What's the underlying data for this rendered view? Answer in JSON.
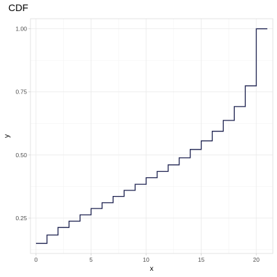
{
  "chart_data": {
    "type": "line",
    "subtype": "step",
    "title": "CDF",
    "xlabel": "x",
    "ylabel": "y",
    "xlim": [
      -0.5,
      21.5
    ],
    "ylim": [
      0.11,
      1.04
    ],
    "x_ticks": [
      0,
      5,
      10,
      15,
      20
    ],
    "x_tick_labels": [
      "0",
      "5",
      "10",
      "15",
      "20"
    ],
    "y_ticks": [
      0.25,
      0.5,
      0.75,
      1.0
    ],
    "y_tick_labels": [
      "0.25",
      "0.50",
      "0.75",
      "1.00"
    ],
    "grid": true,
    "legend": "none",
    "line_color": "#1a1f4d",
    "series": [
      {
        "x": [
          0,
          1,
          2,
          3,
          4,
          5,
          6,
          7,
          8,
          9,
          10,
          11,
          12,
          13,
          14,
          15,
          16,
          17,
          18,
          19,
          20,
          21
        ],
        "y": [
          0.15,
          0.183,
          0.213,
          0.238,
          0.263,
          0.288,
          0.311,
          0.336,
          0.36,
          0.384,
          0.41,
          0.435,
          0.461,
          0.489,
          0.522,
          0.556,
          0.594,
          0.637,
          0.692,
          0.774,
          1.0,
          1.0
        ]
      }
    ]
  }
}
